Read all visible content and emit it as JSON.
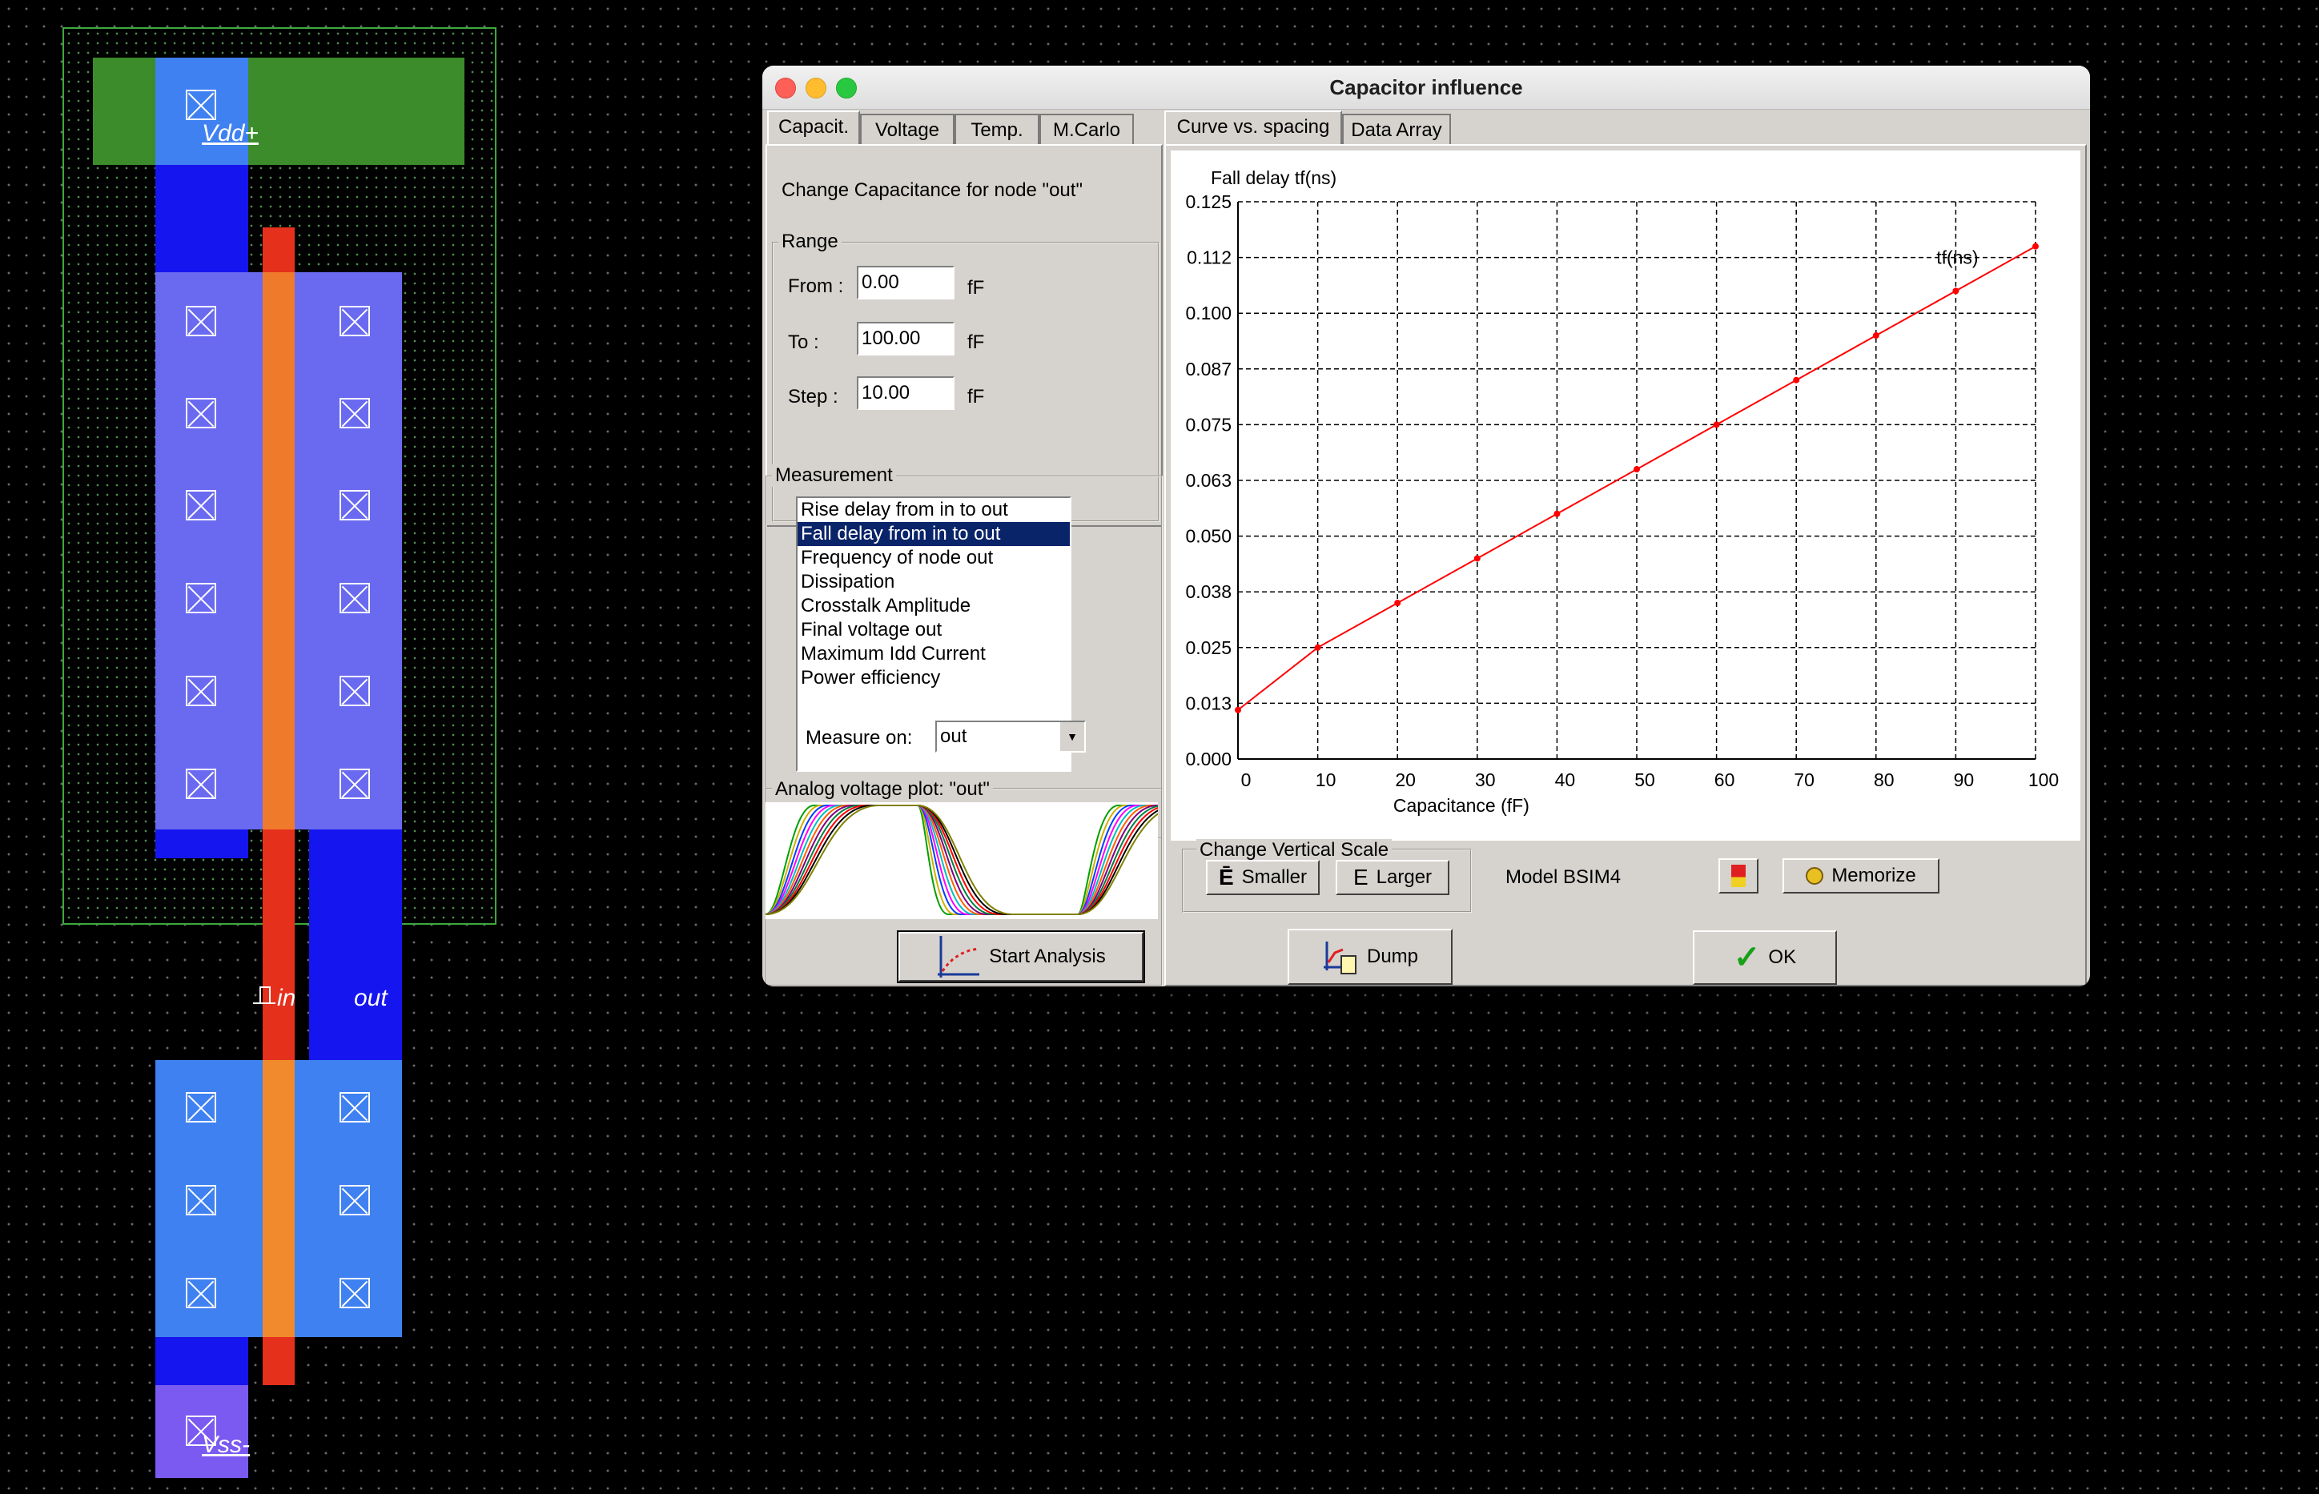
{
  "layout": {
    "labels": {
      "vdd": "Vdd+",
      "in": "in",
      "out": "out",
      "vss": "Vss-"
    }
  },
  "dialog": {
    "title": "Capacitor influence",
    "left_tabs": [
      "Capacit.",
      "Voltage",
      "Temp.",
      "M.Carlo"
    ],
    "right_tabs": [
      "Curve vs. spacing",
      "Data Array"
    ],
    "description": "Change Capacitance for node \"out\"",
    "range": {
      "title": "Range",
      "from_label": "From :",
      "from_value": "0.00",
      "to_label": "To :",
      "to_value": "100.00",
      "step_label": "Step :",
      "step_value": "10.00",
      "unit": "fF"
    },
    "measurement": {
      "title": "Measurement",
      "items": [
        "Rise delay from in to out",
        "Fall delay from in to out",
        "Frequency of node out",
        "Dissipation",
        "Crosstalk Amplitude",
        "Final voltage out",
        "Maximum Idd Current",
        "Power efficiency"
      ],
      "selected_index": 1,
      "measure_on_label": "Measure on:",
      "measure_on_value": "out"
    },
    "analog_plot_title": "Analog voltage plot: \"out\"",
    "vertical_scale": {
      "title": "Change Vertical Scale",
      "smaller": "Smaller",
      "larger": "Larger"
    },
    "model": "Model BSIM4",
    "memorize": "Memorize",
    "buttons": {
      "start": "Start Analysis",
      "dump": "Dump",
      "ok": "OK"
    }
  },
  "chart_data": {
    "type": "line",
    "title": "Fall delay tf(ns)",
    "xlabel": "Capacitance (fF)",
    "ylabel": "",
    "series_label": "tf(ns)",
    "x": [
      0,
      10,
      20,
      30,
      40,
      50,
      60,
      70,
      80,
      90,
      100
    ],
    "values": [
      0.011,
      0.025,
      0.035,
      0.045,
      0.055,
      0.065,
      0.075,
      0.085,
      0.095,
      0.105,
      0.115
    ],
    "xticks": [
      "0",
      "10",
      "20",
      "30",
      "40",
      "50",
      "60",
      "70",
      "80",
      "90",
      "100"
    ],
    "yticks": [
      "0.000",
      "0.013",
      "0.025",
      "0.038",
      "0.050",
      "0.063",
      "0.075",
      "0.087",
      "0.100",
      "0.112",
      "0.125"
    ],
    "xlim": [
      0,
      100
    ],
    "ylim": [
      0,
      0.125
    ],
    "grid": true,
    "line_color": "#ff0000"
  }
}
